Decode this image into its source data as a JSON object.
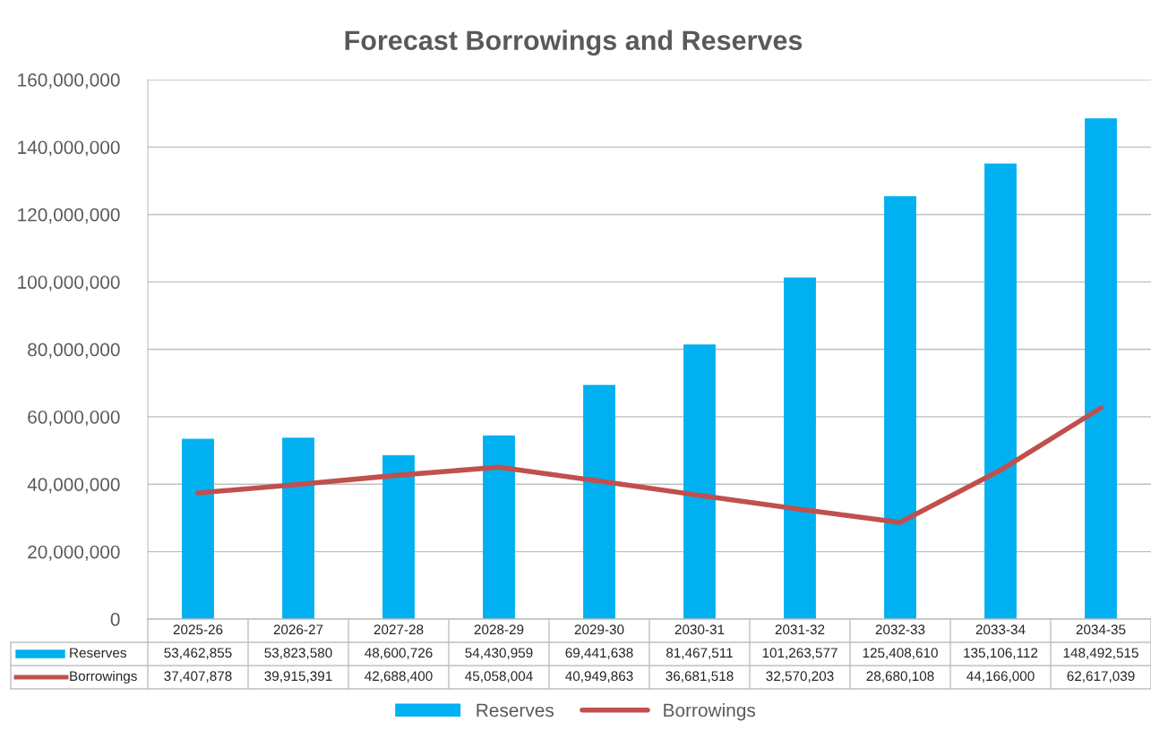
{
  "chart_data": {
    "type": "bar",
    "title": "Forecast Borrowings and Reserves",
    "categories": [
      "2025-26",
      "2026-27",
      "2027-28",
      "2028-29",
      "2029-30",
      "2030-31",
      "2031-32",
      "2032-33",
      "2033-34",
      "2034-35"
    ],
    "series": [
      {
        "name": "Reserves",
        "color": "#00b0f0",
        "values": [
          53462855,
          53823580,
          48600726,
          54430959,
          69441638,
          81467511,
          101263577,
          125408610,
          135106112,
          148492515
        ],
        "value_labels": [
          "53,462,855",
          "53,823,580",
          "48,600,726",
          "54,430,959",
          "69,441,638",
          "81,467,511",
          "101,263,577",
          "125,408,610",
          "135,106,112",
          "148,492,515"
        ]
      },
      {
        "name": "Borrowings",
        "type": "line",
        "color": "#c0504d",
        "values": [
          37407878,
          39915391,
          42688400,
          45058004,
          40949863,
          36681518,
          32570203,
          28680108,
          44166000,
          62617039
        ],
        "value_labels": [
          "37,407,878",
          "39,915,391",
          "42,688,400",
          "45,058,004",
          "40,949,863",
          "36,681,518",
          "32,570,203",
          "28,680,108",
          "44,166,000",
          "62,617,039"
        ]
      }
    ],
    "ylim": [
      0,
      160000000
    ],
    "yticks": [
      0,
      {
        "value": 20000000,
        "label": "20,000,000"
      },
      {
        "value": 40000000,
        "label": "40,000,000"
      },
      {
        "value": 60000000,
        "label": "60,000,000"
      },
      {
        "value": 80000000,
        "label": "80,000,000"
      },
      {
        "value": 100000000,
        "label": "100,000,000"
      },
      {
        "value": 120000000,
        "label": "120,000,000"
      },
      {
        "value": 140000000,
        "label": "140,000,000"
      },
      {
        "value": 160000000,
        "label": "160,000,000"
      }
    ],
    "grid": "y",
    "legend": "bottom"
  }
}
